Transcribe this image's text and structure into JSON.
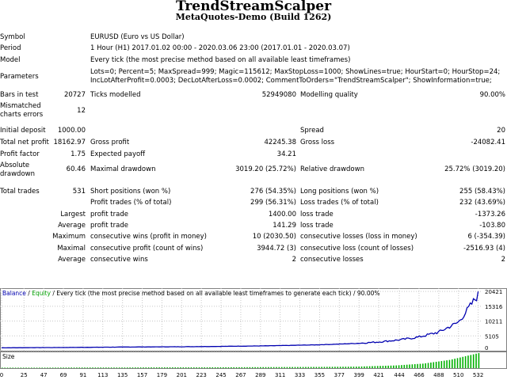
{
  "header": {
    "title": "TrendStreamScalper",
    "subtitle": "MetaQuotes-Demo (Build 1262)"
  },
  "info": {
    "symbol_label": "Symbol",
    "symbol": "EURUSD (Euro vs US Dollar)",
    "period_label": "Period",
    "period": "1 Hour (H1) 2017.01.02 00:00 - 2020.03.06 23:00 (2017.01.01 - 2020.03.07)",
    "model_label": "Model",
    "model": "Every tick (the most precise method based on all available least timeframes)",
    "params_label": "Parameters",
    "params1": "Lots=0; Percent=5; MaxSpread=999; Magic=115612; MaxStopLoss=1000; ShowLines=true; HourStart=0; HourStop=24;",
    "params2": "IncLotAfterProfit=0.0003; DecLotAfterLoss=0.0002; CommentToOrders=\"TrendStreamScalper\"; ShowInformation=true;"
  },
  "stats": {
    "bars_label": "Bars in test",
    "bars": "20727",
    "ticks_label": "Ticks modelled",
    "ticks": "52949080",
    "quality_label": "Modelling quality",
    "quality": "90.00%",
    "mismatch_label": "Mismatched charts errors",
    "mismatch": "12",
    "deposit_label": "Initial deposit",
    "deposit": "1000.00",
    "spread_label": "Spread",
    "spread": "20",
    "net_label": "Total net profit",
    "net": "18162.97",
    "gp_label": "Gross profit",
    "gp": "42245.38",
    "gl_label": "Gross loss",
    "gl": "-24082.41",
    "pf_label": "Profit factor",
    "pf": "1.75",
    "ep_label": "Expected payoff",
    "ep": "34.21",
    "abs_dd_label": "Absolute drawdown",
    "abs_dd": "60.46",
    "max_dd_label": "Maximal drawdown",
    "max_dd": "3019.20 (25.72%)",
    "rel_dd_label": "Relative drawdown",
    "rel_dd": "25.72% (3019.20)",
    "trades_label": "Total trades",
    "trades": "531",
    "short_label": "Short positions (won %)",
    "short": "276 (54.35%)",
    "long_label": "Long positions (won %)",
    "long": "255 (58.43%)",
    "pt_label": "Profit trades (% of total)",
    "pt": "299 (56.31%)",
    "lt_label": "Loss trades (% of total)",
    "lt": "232 (43.69%)",
    "largest_label": "Largest",
    "lpt_label": "profit trade",
    "lpt": "1400.00",
    "llt_label": "loss trade",
    "llt": "-1373.26",
    "average_label": "Average",
    "apt_label": "profit trade",
    "apt": "141.29",
    "alt_label": "loss trade",
    "alt": "-103.80",
    "maximum_label": "Maximum",
    "mcw_label": "consecutive wins (profit in money)",
    "mcw": "10 (2030.50)",
    "mcl_label": "consecutive losses (loss in money)",
    "mcl": "6 (-354.39)",
    "maximal_label": "Maximal",
    "mcp_label": "consecutive profit (count of wins)",
    "mcp": "3944.72 (3)",
    "mcls_label": "consecutive loss (count of losses)",
    "mcls": "-2516.93 (4)",
    "average2_label": "Average",
    "acw_label": "consecutive wins",
    "acw": "2",
    "acl_label": "consecutive losses",
    "acl": "2"
  },
  "chart_legend": {
    "balance": "Balance",
    "sep1": " / ",
    "equity": "Equity",
    "rest": " / Every tick (the most precise method based on all available least timeframes to generate each tick) / 90.00%"
  },
  "chart_data": {
    "type": "line",
    "series": [
      {
        "name": "Balance",
        "color": "#0000b0",
        "x": [
          0,
          25,
          47,
          69,
          91,
          113,
          135,
          157,
          179,
          201,
          223,
          245,
          267,
          289,
          311,
          333,
          355,
          377,
          399,
          421,
          444,
          466,
          488,
          510,
          532
        ],
        "y": [
          1000,
          1040,
          1080,
          1110,
          1150,
          1210,
          1260,
          1290,
          1330,
          1370,
          1430,
          1500,
          1570,
          1650,
          1760,
          1900,
          2050,
          2280,
          2560,
          3020,
          3720,
          4720,
          6400,
          9800,
          19200
        ]
      },
      {
        "name": "Equity",
        "color": "#00a000",
        "x": [],
        "y": []
      }
    ],
    "y_ticks": [
      "20421",
      "15316",
      "10211",
      "5105",
      "0"
    ],
    "ylim": [
      0,
      21000
    ],
    "x_ticks": [
      "0",
      "25",
      "47",
      "69",
      "91",
      "113",
      "135",
      "157",
      "179",
      "201",
      "223",
      "245",
      "267",
      "289",
      "311",
      "333",
      "355",
      "377",
      "399",
      "421",
      "444",
      "466",
      "488",
      "510",
      "532"
    ],
    "xlim": [
      0,
      535
    ],
    "size_label": "Size",
    "size_series": {
      "x": [
        0,
        44,
        88,
        132,
        176,
        220,
        264,
        308,
        352,
        396,
        440,
        470,
        500,
        532
      ],
      "y": [
        0.03,
        0.03,
        0.04,
        0.04,
        0.05,
        0.05,
        0.06,
        0.07,
        0.08,
        0.1,
        0.18,
        0.3,
        0.55,
        1.0
      ]
    },
    "colors": {
      "balance": "#0000b0",
      "equity": "#00a000",
      "size": "#00b000",
      "grid": "#c8c8c8"
    }
  }
}
